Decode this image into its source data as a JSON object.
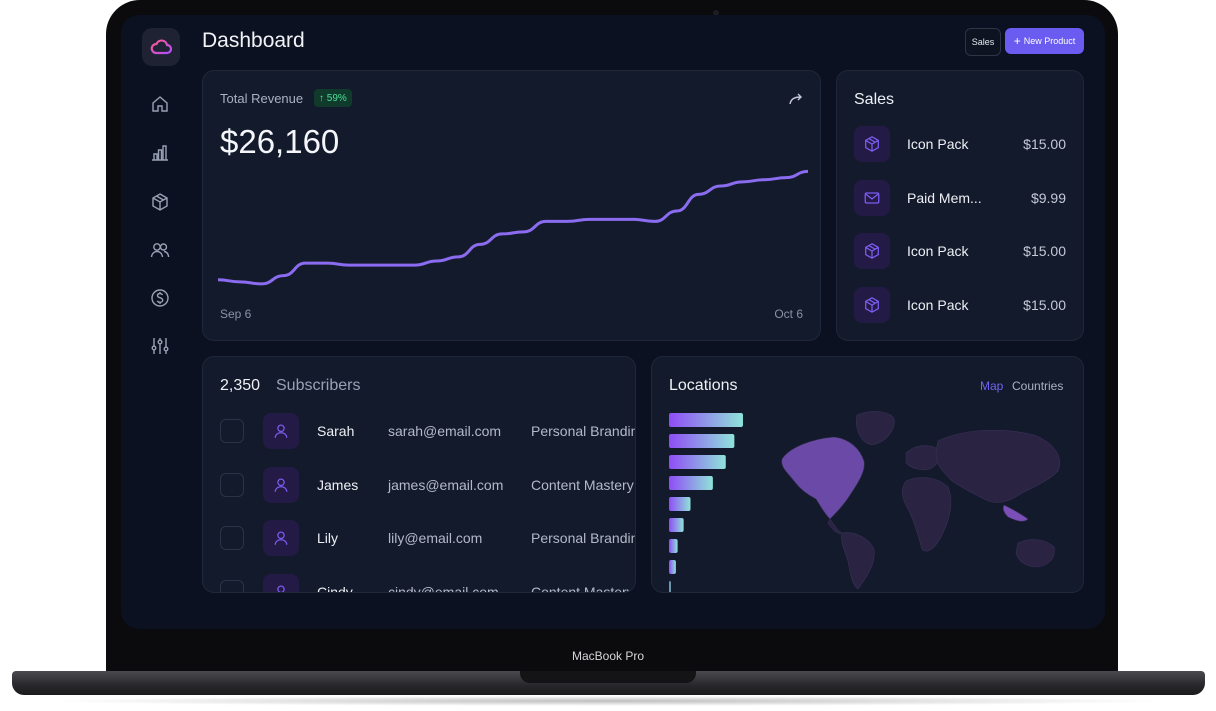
{
  "device": {
    "label": "MacBook Pro"
  },
  "header": {
    "title": "Dashboard",
    "sales_button": "Sales",
    "new_product_button": "New Product"
  },
  "sidebar": {
    "items": [
      {
        "icon": "home-icon"
      },
      {
        "icon": "bar-chart-icon"
      },
      {
        "icon": "box-icon"
      },
      {
        "icon": "users-icon"
      },
      {
        "icon": "dollar-icon"
      },
      {
        "icon": "sliders-icon"
      }
    ]
  },
  "revenue": {
    "label": "Total Revenue",
    "change": "↑ 59%",
    "value": "$26,160",
    "x_start": "Sep 6",
    "x_end": "Oct 6"
  },
  "chart_data": {
    "type": "line",
    "title": "Total Revenue",
    "x_labels": [
      "Sep 6",
      "Oct 6"
    ],
    "values": [
      3,
      2,
      1,
      5,
      11,
      11,
      10,
      10,
      10,
      10,
      12,
      14,
      20,
      25,
      26,
      31,
      31,
      32,
      32,
      32,
      31,
      36,
      44,
      48,
      50,
      51,
      52,
      55
    ],
    "ylim": [
      0,
      60
    ],
    "grid": false,
    "color": "#8b6cf0"
  },
  "sales": {
    "title": "Sales",
    "items": [
      {
        "name": "Icon Pack",
        "price": "$15.00",
        "icon": "box-icon"
      },
      {
        "name": "Paid Mem...",
        "price": "$9.99",
        "icon": "mail-icon"
      },
      {
        "name": "Icon Pack",
        "price": "$15.00",
        "icon": "box-icon"
      },
      {
        "name": "Icon Pack",
        "price": "$15.00",
        "icon": "box-icon"
      }
    ]
  },
  "subscribers": {
    "count": "2,350",
    "label": "Subscribers",
    "rows": [
      {
        "name": "Sarah",
        "email": "sarah@email.com",
        "plan": "Personal Branding"
      },
      {
        "name": "James",
        "email": "james@email.com",
        "plan": "Content Mastery"
      },
      {
        "name": "Lily",
        "email": "lily@email.com",
        "plan": "Personal Branding"
      },
      {
        "name": "Cindy",
        "email": "cindy@email.com",
        "plan": "Content Mastery"
      }
    ]
  },
  "locations": {
    "title": "Locations",
    "tabs": [
      {
        "label": "Map",
        "active": true
      },
      {
        "label": "Countries",
        "active": false
      }
    ],
    "bar_values": [
      86,
      76,
      66,
      51,
      25,
      17,
      10,
      8,
      2
    ]
  },
  "colors": {
    "accent": "#6a5cf0",
    "positive": "#4ee09a",
    "background": "#0b1120",
    "card": "#121a2b"
  }
}
